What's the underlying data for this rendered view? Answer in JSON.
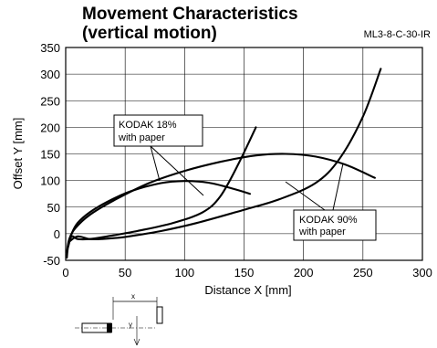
{
  "chart_data": {
    "type": "line",
    "title_line1": "Movement Characteristics",
    "title_line2": "(vertical motion)",
    "model": "ML3-8-C-30-IR",
    "xlabel": "Distance X [mm]",
    "ylabel": "Offset Y [mm]",
    "xlim": [
      0,
      300
    ],
    "ylim": [
      -50,
      350
    ],
    "xticks": [
      "0",
      "50",
      "100",
      "150",
      "200",
      "250",
      "300"
    ],
    "yticks": [
      "-50",
      "0",
      "50",
      "100",
      "150",
      "200",
      "250",
      "300",
      "350"
    ],
    "grid": true,
    "series": [
      {
        "name": "KODAK 18% with paper",
        "label_lines": [
          "KODAK 18%",
          "with paper"
        ],
        "curves": [
          {
            "points": [
              [
                1,
                -45
              ],
              [
                2,
                -25
              ],
              [
                5,
                0
              ],
              [
                10,
                20
              ],
              [
                20,
                40
              ],
              [
                35,
                60
              ],
              [
                55,
                80
              ],
              [
                80,
                95
              ],
              [
                100,
                99
              ],
              [
                120,
                96
              ],
              [
                140,
                85
              ],
              [
                155,
                75
              ]
            ]
          },
          {
            "points": [
              [
                2,
                -25
              ],
              [
                5,
                -5
              ],
              [
                10,
                -10
              ],
              [
                20,
                -10
              ],
              [
                35,
                -5
              ],
              [
                60,
                5
              ],
              [
                90,
                20
              ],
              [
                115,
                40
              ],
              [
                130,
                70
              ],
              [
                145,
                130
              ],
              [
                160,
                200
              ]
            ]
          }
        ]
      },
      {
        "name": "KODAK 90% with paper",
        "label_lines": [
          "KODAK 90%",
          "with paper"
        ],
        "curves": [
          {
            "points": [
              [
                1,
                -35
              ],
              [
                3,
                -10
              ],
              [
                8,
                10
              ],
              [
                20,
                35
              ],
              [
                40,
                62
              ],
              [
                70,
                95
              ],
              [
                100,
                118
              ],
              [
                130,
                135
              ],
              [
                160,
                147
              ],
              [
                185,
                150
              ],
              [
                210,
                145
              ],
              [
                235,
                130
              ],
              [
                260,
                105
              ]
            ]
          },
          {
            "points": [
              [
                3,
                -15
              ],
              [
                10,
                -5
              ],
              [
                20,
                -10
              ],
              [
                30,
                -10
              ],
              [
                50,
                -6
              ],
              [
                80,
                5
              ],
              [
                110,
                20
              ],
              [
                150,
                45
              ],
              [
                180,
                65
              ],
              [
                210,
                95
              ],
              [
                230,
                140
              ],
              [
                250,
                220
              ],
              [
                265,
                310
              ]
            ]
          }
        ]
      }
    ],
    "diagram": {
      "x_label": "x",
      "y_label": "y"
    }
  }
}
